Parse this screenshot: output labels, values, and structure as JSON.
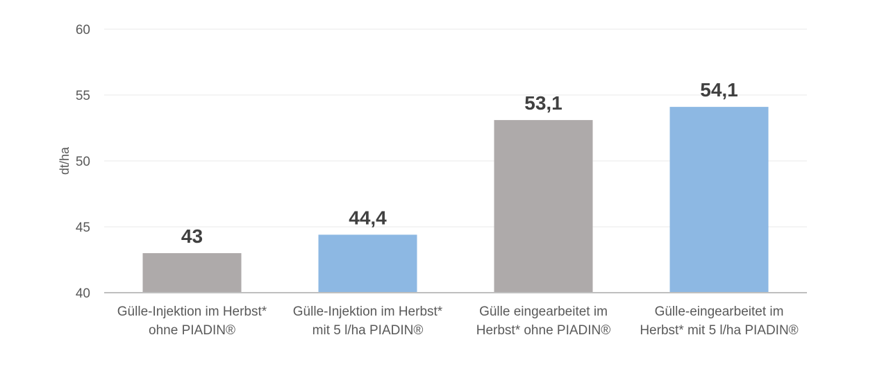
{
  "chart_data": {
    "type": "bar",
    "categories": [
      [
        "Gülle-Injektion im Herbst*",
        "ohne PIADIN®"
      ],
      [
        "Gülle-Injektion im Herbst*",
        "mit 5 l/ha PIADIN®"
      ],
      [
        "Gülle eingearbeitet im",
        "Herbst* ohne PIADIN®"
      ],
      [
        "Gülle-eingearbeitet im",
        "Herbst* mit 5 l/ha PIADIN®"
      ]
    ],
    "values": [
      43,
      44.4,
      53.1,
      54.1
    ],
    "data_labels": [
      "43",
      "44,4",
      "53,1",
      "54,1"
    ],
    "bar_colors": [
      "#aeaaaa",
      "#8db8e3",
      "#aeaaaa",
      "#8db8e3"
    ],
    "ylabel": "dt/ha",
    "xlabel": "",
    "ylim": [
      40,
      60
    ],
    "yticks": [
      40,
      45,
      50,
      55,
      60
    ],
    "grid": true,
    "legend": "none"
  }
}
